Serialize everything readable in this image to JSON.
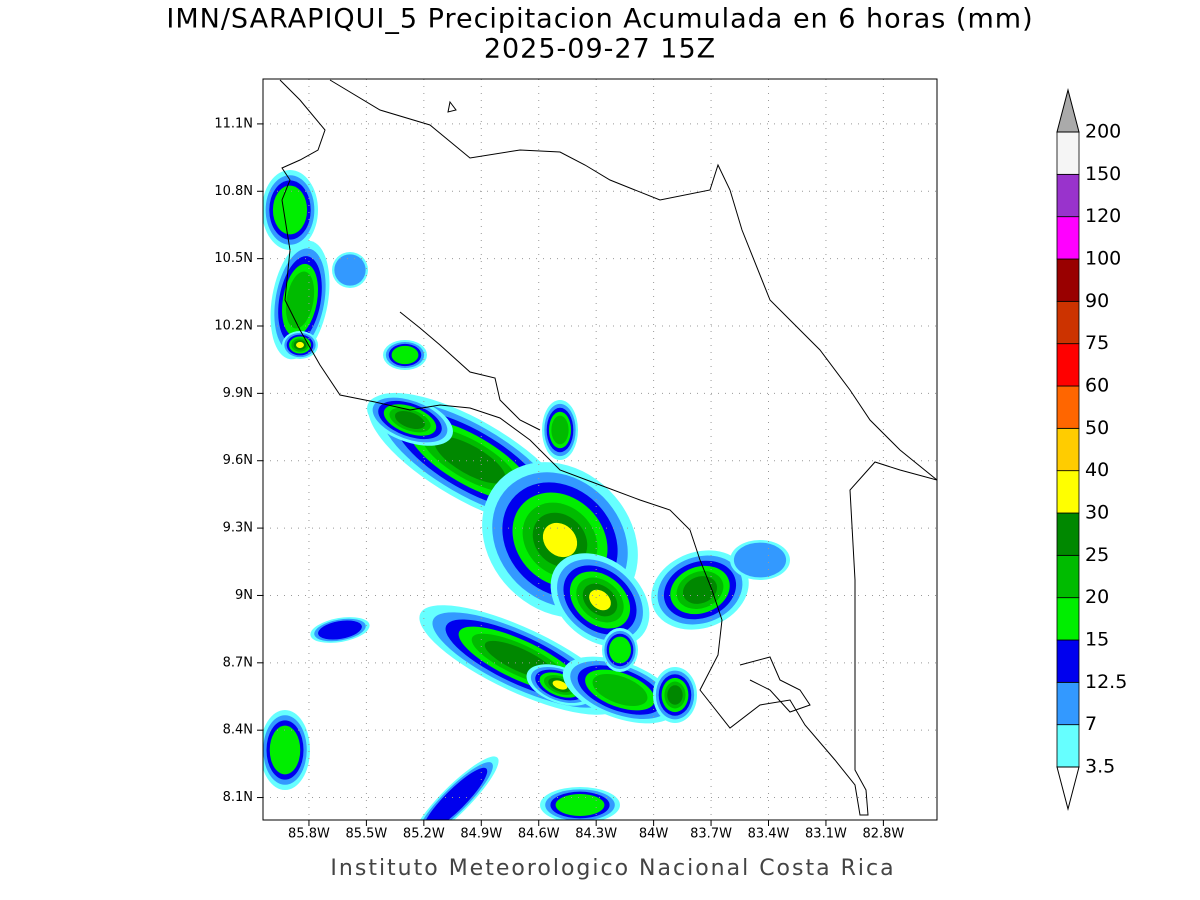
{
  "header": {
    "title": "IMN/SARAPIQUI_5 Precipitacion Acumulada en 6 horas (mm)",
    "subtitle": "2025-09-27 15Z"
  },
  "map": {
    "xlim": [
      -86.04,
      -82.52
    ],
    "ylim": [
      8.0,
      11.3
    ],
    "lon_ticks": [
      {
        "value": -85.8,
        "label": "85.8W"
      },
      {
        "value": -85.5,
        "label": "85.5W"
      },
      {
        "value": -85.2,
        "label": "85.2W"
      },
      {
        "value": -84.9,
        "label": "84.9W"
      },
      {
        "value": -84.6,
        "label": "84.6W"
      },
      {
        "value": -84.3,
        "label": "84.3W"
      },
      {
        "value": -84.0,
        "label": "84W"
      },
      {
        "value": -83.7,
        "label": "83.7W"
      },
      {
        "value": -83.4,
        "label": "83.4W"
      },
      {
        "value": -83.1,
        "label": "83.1W"
      },
      {
        "value": -82.8,
        "label": "82.8W"
      }
    ],
    "lat_ticks": [
      {
        "value": 11.1,
        "label": "11.1N"
      },
      {
        "value": 10.8,
        "label": "10.8N"
      },
      {
        "value": 10.5,
        "label": "10.5N"
      },
      {
        "value": 10.2,
        "label": "10.2N"
      },
      {
        "value": 9.9,
        "label": "9.9N"
      },
      {
        "value": 9.6,
        "label": "9.6N"
      },
      {
        "value": 9.3,
        "label": "9.3N"
      },
      {
        "value": 9.0,
        "label": "9N"
      },
      {
        "value": 8.7,
        "label": "8.7N"
      },
      {
        "value": 8.4,
        "label": "8.4N"
      },
      {
        "value": 8.1,
        "label": "8.1N"
      }
    ]
  },
  "colorbar": {
    "levels": [
      3.5,
      7,
      12.5,
      15,
      20,
      25,
      30,
      40,
      50,
      60,
      75,
      90,
      100,
      120,
      150,
      200
    ],
    "colors": [
      "#66ffff",
      "#3399ff",
      "#0000ee",
      "#00ee00",
      "#00bb00",
      "#008800",
      "#ffff00",
      "#ffcc00",
      "#ff6600",
      "#ff0000",
      "#cc3300",
      "#990000",
      "#ff00ff",
      "#9933cc",
      "#f5f5f5"
    ],
    "over_color": "#aaaaaa",
    "under_color": "#ffffff"
  },
  "footer": "Instituto Meteorologico Nacional Costa Rica"
}
